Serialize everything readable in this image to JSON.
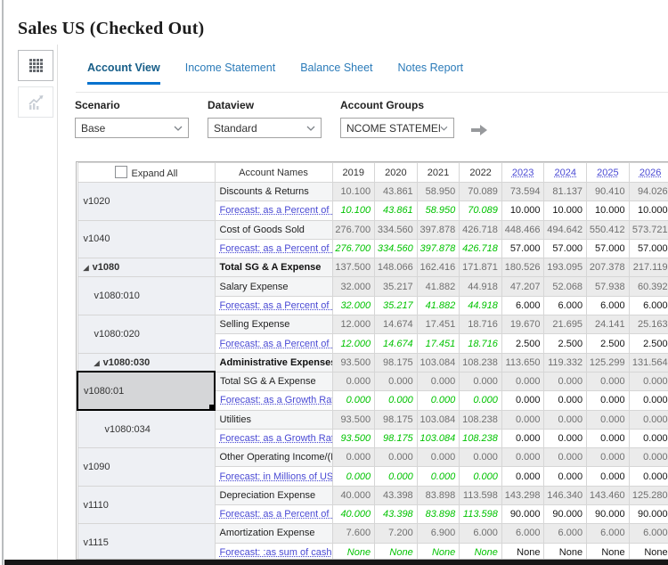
{
  "page": {
    "title": "Sales US (Checked Out)"
  },
  "colors": {
    "accent": "#0572ce",
    "link": "#4a4ad4",
    "forecast_green": "#00c300",
    "selected_cell_border": "#000000",
    "selected_cell_bg": "#d5d6d8"
  },
  "icons": {
    "collapse_triangle": "◢"
  },
  "tabs": [
    {
      "label": "Account View",
      "active": true
    },
    {
      "label": "Income Statement",
      "active": false
    },
    {
      "label": "Balance Sheet",
      "active": false
    },
    {
      "label": "Notes Report",
      "active": false
    }
  ],
  "filters": [
    {
      "label": "Scenario",
      "value": "Base"
    },
    {
      "label": "Dataview",
      "value": "Standard"
    },
    {
      "label": "Account Groups",
      "value": "NCOME STATEMENT"
    }
  ],
  "table": {
    "expand_all_label": "Expand All",
    "account_names_header": "Account Names",
    "years": [
      {
        "label": "2019",
        "link": false
      },
      {
        "label": "2020",
        "link": false
      },
      {
        "label": "2021",
        "link": false
      },
      {
        "label": "2022",
        "link": false
      },
      {
        "label": "2023",
        "link": true
      },
      {
        "label": "2024",
        "link": true
      },
      {
        "label": "2025",
        "link": true
      },
      {
        "label": "2026",
        "link": true
      }
    ],
    "groups": [
      {
        "code": "v1020",
        "indent": 0,
        "bold": false,
        "triangle": false,
        "selected": false,
        "name": "Discounts & Returns",
        "values": [
          "10.100",
          "43.861",
          "58.950",
          "70.089",
          "73.594",
          "81.137",
          "90.410",
          "94.026"
        ],
        "forecast": {
          "label": "Forecast: as a Percent of F",
          "values": [
            "10.100",
            "43.861",
            "58.950",
            "70.089",
            "10.000",
            "10.000",
            "10.000",
            "10.000"
          ]
        }
      },
      {
        "code": "v1040",
        "indent": 0,
        "bold": false,
        "triangle": false,
        "selected": false,
        "name": "Cost of Goods Sold",
        "values": [
          "276.700",
          "334.560",
          "397.878",
          "426.718",
          "448.466",
          "494.642",
          "550.412",
          "573.721"
        ],
        "forecast": {
          "label": "Forecast: as a Percent of S",
          "values": [
            "276.700",
            "334.560",
            "397.878",
            "426.718",
            "57.000",
            "57.000",
            "57.000",
            "57.000"
          ]
        }
      },
      {
        "code": "v1080",
        "indent": 0,
        "bold": true,
        "triangle": true,
        "selected": false,
        "name": "Total SG & A Expense",
        "values": [
          "137.500",
          "148.066",
          "162.416",
          "171.871",
          "180.526",
          "193.095",
          "207.378",
          "217.119"
        ],
        "forecast": null
      },
      {
        "code": "v1080:010",
        "indent": 1,
        "bold": false,
        "triangle": false,
        "selected": false,
        "name": "Salary Expense",
        "values": [
          "32.000",
          "35.217",
          "41.882",
          "44.918",
          "47.207",
          "52.068",
          "57.938",
          "60.392"
        ],
        "forecast": {
          "label": "Forecast: as a Percent of S",
          "values": [
            "32.000",
            "35.217",
            "41.882",
            "44.918",
            "6.000",
            "6.000",
            "6.000",
            "6.000"
          ]
        }
      },
      {
        "code": "v1080:020",
        "indent": 1,
        "bold": false,
        "triangle": false,
        "selected": false,
        "name": "Selling Expense",
        "values": [
          "12.000",
          "14.674",
          "17.451",
          "18.716",
          "19.670",
          "21.695",
          "24.141",
          "25.163"
        ],
        "forecast": {
          "label": "Forecast: as a Percent of S",
          "values": [
            "12.000",
            "14.674",
            "17.451",
            "18.716",
            "2.500",
            "2.500",
            "2.500",
            "2.500"
          ]
        }
      },
      {
        "code": "v1080:030",
        "indent": 1,
        "bold": true,
        "triangle": true,
        "selected": false,
        "name": "Administrative Expenses",
        "values": [
          "93.500",
          "98.175",
          "103.084",
          "108.238",
          "113.650",
          "119.332",
          "125.299",
          "131.564"
        ],
        "forecast": null
      },
      {
        "code": "v1080:01",
        "indent": 0,
        "bold": false,
        "triangle": false,
        "selected": true,
        "name": "Total SG & A Expense",
        "values": [
          "0.000",
          "0.000",
          "0.000",
          "0.000",
          "0.000",
          "0.000",
          "0.000",
          "0.000"
        ],
        "forecast": {
          "label": "Forecast: as a Growth Rat",
          "values": [
            "0.000",
            "0.000",
            "0.000",
            "0.000",
            "0.000",
            "0.000",
            "0.000",
            "0.000"
          ]
        }
      },
      {
        "code": "v1080:034",
        "indent": 2,
        "bold": false,
        "triangle": false,
        "selected": false,
        "name": "Utilities",
        "values": [
          "93.500",
          "98.175",
          "103.084",
          "108.238",
          "0.000",
          "0.000",
          "0.000",
          "0.000"
        ],
        "forecast": {
          "label": "Forecast: as a Growth Rat",
          "values": [
            "93.500",
            "98.175",
            "103.084",
            "108.238",
            "0.000",
            "0.000",
            "0.000",
            "0.000"
          ]
        }
      },
      {
        "code": "v1090",
        "indent": 0,
        "bold": false,
        "triangle": false,
        "selected": false,
        "name": "Other Operating Income/(E",
        "values": [
          "0.000",
          "0.000",
          "0.000",
          "0.000",
          "0.000",
          "0.000",
          "0.000",
          "0.000"
        ],
        "forecast": {
          "label": "Forecast: in Millions of US",
          "values": [
            "0.000",
            "0.000",
            "0.000",
            "0.000",
            "0.000",
            "0.000",
            "0.000",
            "0.000"
          ]
        }
      },
      {
        "code": "v1110",
        "indent": 0,
        "bold": false,
        "triangle": false,
        "selected": false,
        "name": "Depreciation Expense",
        "values": [
          "40.000",
          "43.398",
          "83.898",
          "113.598",
          "143.298",
          "146.340",
          "143.460",
          "125.280"
        ],
        "forecast": {
          "label": "Forecast: as a Percent of D",
          "values": [
            "40.000",
            "43.398",
            "83.898",
            "113.598",
            "90.000",
            "90.000",
            "90.000",
            "90.000"
          ]
        }
      },
      {
        "code": "v1115",
        "indent": 0,
        "bold": false,
        "triangle": false,
        "selected": false,
        "name": "Amortization Expense",
        "values": [
          "7.600",
          "7.200",
          "6.900",
          "6.000",
          "6.000",
          "6.000",
          "6.000",
          "6.000"
        ],
        "forecast": {
          "label": "Forecast: :as sum of cash",
          "values": [
            "None",
            "None",
            "None",
            "None",
            "None",
            "None",
            "None",
            "None"
          ]
        }
      }
    ]
  }
}
